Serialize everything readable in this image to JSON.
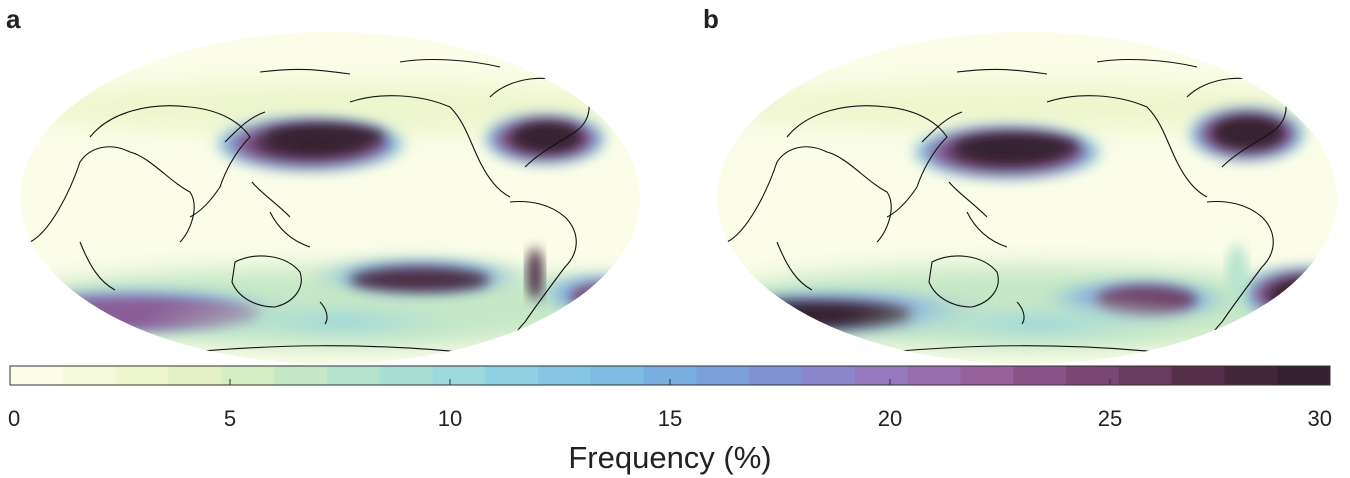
{
  "panels": [
    {
      "label": "a"
    },
    {
      "label": "b"
    }
  ],
  "colorbar": {
    "title": "Frequency (%)",
    "min": 0,
    "max": 30,
    "ticks": [
      0,
      5,
      10,
      15,
      20,
      25,
      30
    ],
    "colors": [
      "#fbfde8",
      "#f6fadc",
      "#eef6cd",
      "#e4f1c5",
      "#d6edc3",
      "#c6e8c6",
      "#b5e3cc",
      "#a8dfd5",
      "#9cd9de",
      "#8fd0e3",
      "#86c6e4",
      "#7dbbe3",
      "#78aee0",
      "#7aa0da",
      "#8192d3",
      "#8b86cb",
      "#9479be",
      "#996eae",
      "#97619c",
      "#8b5488",
      "#7a4673",
      "#683b5f",
      "#562f4b",
      "#43263a",
      "#352031"
    ]
  }
}
